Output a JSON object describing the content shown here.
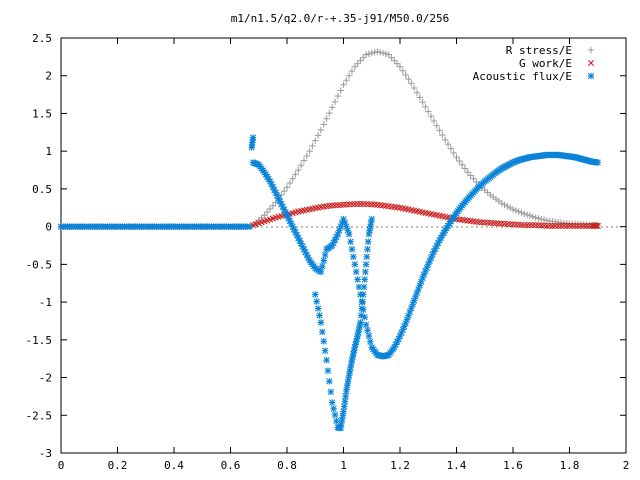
{
  "chart_data": {
    "type": "scatter",
    "title": "m1/n1.5/q2.0/r-+.35-j91/M50.0/256",
    "xlabel": "",
    "ylabel": "",
    "xlim": [
      0,
      2
    ],
    "ylim": [
      -3,
      2.5
    ],
    "grid": false,
    "legend_position": "top-right",
    "x_ticks": [
      "0",
      "0.2",
      "0.4",
      "0.6",
      "0.8",
      "1",
      "1.2",
      "1.4",
      "1.6",
      "1.8",
      "2"
    ],
    "y_ticks": [
      "2.5",
      "2",
      "1.5",
      "1",
      "0.5",
      "0",
      "-0.5",
      "-1",
      "-1.5",
      "-2",
      "-2.5",
      "-3"
    ],
    "series": [
      {
        "name": "R stress/E",
        "marker": "plus",
        "color": "#a0a0a0",
        "x": [
          0.68,
          0.72,
          0.76,
          0.8,
          0.84,
          0.88,
          0.92,
          0.96,
          1.0,
          1.04,
          1.08,
          1.12,
          1.16,
          1.2,
          1.24,
          1.28,
          1.32,
          1.36,
          1.4,
          1.44,
          1.48,
          1.52,
          1.56,
          1.6,
          1.64,
          1.68,
          1.72,
          1.76,
          1.8,
          1.84,
          1.88,
          1.9
        ],
        "y": [
          0.02,
          0.15,
          0.32,
          0.52,
          0.75,
          1.0,
          1.28,
          1.58,
          1.88,
          2.12,
          2.28,
          2.32,
          2.28,
          2.12,
          1.9,
          1.65,
          1.4,
          1.15,
          0.92,
          0.72,
          0.55,
          0.42,
          0.31,
          0.23,
          0.17,
          0.12,
          0.08,
          0.06,
          0.04,
          0.03,
          0.02,
          0.02
        ]
      },
      {
        "name": "G work/E",
        "marker": "cross",
        "color": "#cc2222",
        "x": [
          0.68,
          0.72,
          0.76,
          0.8,
          0.84,
          0.88,
          0.92,
          0.96,
          1.0,
          1.04,
          1.08,
          1.12,
          1.16,
          1.2,
          1.24,
          1.28,
          1.32,
          1.36,
          1.4,
          1.44,
          1.48,
          1.52,
          1.56,
          1.6,
          1.64,
          1.68,
          1.72,
          1.76,
          1.8,
          1.84,
          1.88,
          1.9
        ],
        "y": [
          0.02,
          0.07,
          0.12,
          0.16,
          0.2,
          0.23,
          0.26,
          0.28,
          0.29,
          0.3,
          0.3,
          0.29,
          0.27,
          0.25,
          0.22,
          0.19,
          0.16,
          0.13,
          0.1,
          0.08,
          0.06,
          0.05,
          0.04,
          0.03,
          0.02,
          0.02,
          0.01,
          0.01,
          0.01,
          0.01,
          0.01,
          0.01
        ]
      },
      {
        "name": "Acoustic flux/E",
        "marker": "star",
        "color": "#0a84d8",
        "x": [
          0.68,
          0.7,
          0.72,
          0.74,
          0.76,
          0.78,
          0.8,
          0.82,
          0.84,
          0.86,
          0.88,
          0.9,
          0.92,
          0.94,
          0.96,
          0.98,
          1.0,
          1.02,
          1.04,
          1.06,
          1.08,
          1.1,
          1.12,
          1.14,
          1.16,
          1.18,
          1.2,
          1.22,
          1.24,
          1.26,
          1.28,
          1.3,
          1.32,
          1.34,
          1.36,
          1.38,
          1.4,
          1.42,
          1.44,
          1.46,
          1.48,
          1.5,
          1.52,
          1.54,
          1.56,
          1.58,
          1.6,
          1.62,
          1.64,
          1.66,
          1.68,
          1.7,
          1.72,
          1.74,
          1.76,
          1.78,
          1.8,
          1.82,
          1.84,
          1.86,
          1.88,
          1.9,
          0.675,
          0.68,
          0.9,
          0.92,
          0.94,
          0.96,
          0.98,
          0.99,
          1.0,
          1.01,
          1.02,
          1.03,
          1.04,
          1.05,
          1.06,
          1.07,
          1.08,
          1.09,
          1.1
        ],
        "y": [
          0.85,
          0.82,
          0.72,
          0.6,
          0.45,
          0.3,
          0.15,
          0.0,
          -0.15,
          -0.3,
          -0.45,
          -0.55,
          -0.6,
          -0.3,
          -0.25,
          -0.1,
          0.1,
          -0.1,
          -0.5,
          -0.9,
          -1.3,
          -1.6,
          -1.7,
          -1.72,
          -1.7,
          -1.6,
          -1.45,
          -1.28,
          -1.08,
          -0.88,
          -0.68,
          -0.5,
          -0.33,
          -0.18,
          -0.05,
          0.07,
          0.18,
          0.28,
          0.37,
          0.45,
          0.53,
          0.6,
          0.66,
          0.72,
          0.77,
          0.81,
          0.85,
          0.88,
          0.9,
          0.92,
          0.93,
          0.94,
          0.95,
          0.95,
          0.95,
          0.94,
          0.93,
          0.92,
          0.9,
          0.88,
          0.86,
          0.85,
          1.05,
          1.18,
          -0.9,
          -1.27,
          -1.77,
          -2.33,
          -2.66,
          -2.67,
          -2.45,
          -2.18,
          -1.97,
          -1.77,
          -1.6,
          -1.45,
          -1.27,
          -0.9,
          -0.5,
          -0.1,
          0.1
        ]
      }
    ]
  }
}
